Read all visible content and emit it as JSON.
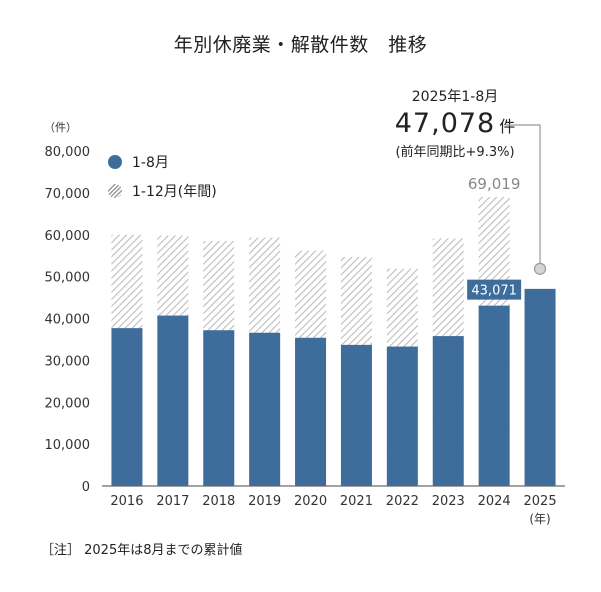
{
  "title": "年別休廃業・解散件数　推移",
  "note": "［注］ 2025年は8月までの累計値",
  "callout": {
    "line1": "2025年1-8月",
    "value": "47,078",
    "unit": "件",
    "line3": "(前年同期比+9.3%)"
  },
  "colors": {
    "bar_primary": "#3f6d9b",
    "bar_hatch_line": "#b9b9b9",
    "label_box": "#3f6d9b",
    "callout_line": "#999999"
  },
  "chart_data": {
    "type": "bar",
    "title": "年別休廃業・解散件数　推移",
    "ylabel": "（件）",
    "xunit": "(年)",
    "ylim": [
      0,
      80000
    ],
    "yticks": [
      0,
      10000,
      20000,
      30000,
      40000,
      50000,
      60000,
      70000,
      80000
    ],
    "ytick_labels": [
      "0",
      "10,000",
      "20,000",
      "30,000",
      "40,000",
      "50,000",
      "60,000",
      "70,000",
      "80,000"
    ],
    "categories": [
      "2016",
      "2017",
      "2018",
      "2019",
      "2020",
      "2021",
      "2022",
      "2023",
      "2024",
      "2025"
    ],
    "legend": [
      "1-8月",
      "1-12月(年間)"
    ],
    "legend_position": "top-left",
    "series": [
      {
        "name": "1-12月(年間)",
        "style": "hatched",
        "values": [
          60000,
          59800,
          58500,
          59300,
          56200,
          54700,
          51900,
          59100,
          69019,
          null
        ]
      },
      {
        "name": "1-8月",
        "style": "solid",
        "values": [
          37700,
          40700,
          37200,
          36600,
          35400,
          33700,
          33300,
          35800,
          43071,
          47078
        ]
      }
    ],
    "annotations": [
      {
        "category": "2024",
        "series": "1-12月(年間)",
        "text": "69,019"
      },
      {
        "category": "2024",
        "series": "1-8月",
        "text": "43,071",
        "boxed": true
      }
    ]
  }
}
